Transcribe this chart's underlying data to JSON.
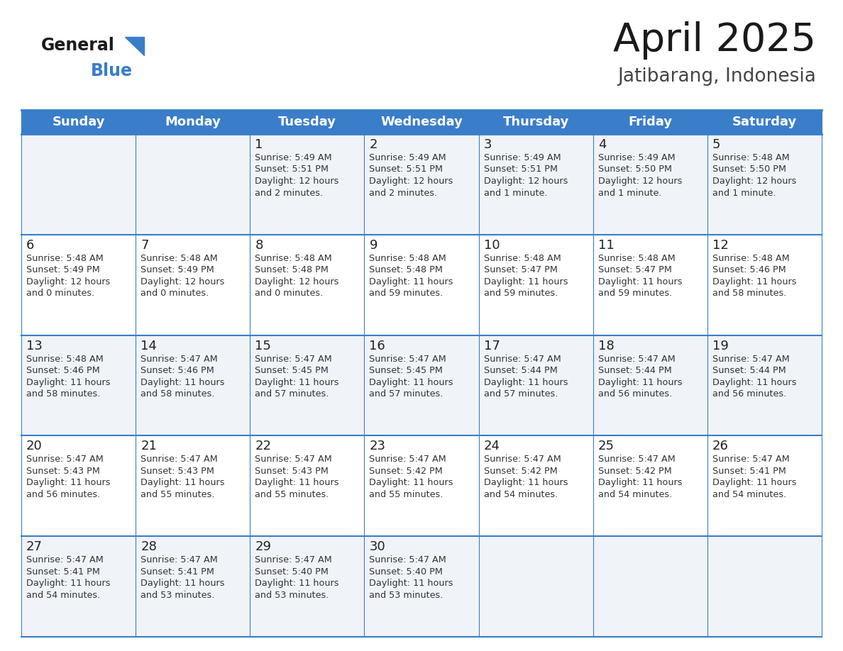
{
  "title": "April 2025",
  "subtitle": "Jatibarang, Indonesia",
  "header_bg_color": "#3A7DC9",
  "header_text_color": "#FFFFFF",
  "row_bg_colors": [
    "#F0F4F8",
    "#FFFFFF",
    "#F0F4F8",
    "#FFFFFF",
    "#F0F4F8"
  ],
  "grid_line_color": "#3A7DC9",
  "separator_line_color": "#3A7DC9",
  "day_number_color": "#222222",
  "cell_text_color": "#333333",
  "weekdays": [
    "Sunday",
    "Monday",
    "Tuesday",
    "Wednesday",
    "Thursday",
    "Friday",
    "Saturday"
  ],
  "calendar_data": [
    [
      {
        "day": null,
        "sunrise": null,
        "sunset": null,
        "daylight": null
      },
      {
        "day": null,
        "sunrise": null,
        "sunset": null,
        "daylight": null
      },
      {
        "day": 1,
        "sunrise": "5:49 AM",
        "sunset": "5:51 PM",
        "daylight": "12 hours\nand 2 minutes."
      },
      {
        "day": 2,
        "sunrise": "5:49 AM",
        "sunset": "5:51 PM",
        "daylight": "12 hours\nand 2 minutes."
      },
      {
        "day": 3,
        "sunrise": "5:49 AM",
        "sunset": "5:51 PM",
        "daylight": "12 hours\nand 1 minute."
      },
      {
        "day": 4,
        "sunrise": "5:49 AM",
        "sunset": "5:50 PM",
        "daylight": "12 hours\nand 1 minute."
      },
      {
        "day": 5,
        "sunrise": "5:48 AM",
        "sunset": "5:50 PM",
        "daylight": "12 hours\nand 1 minute."
      }
    ],
    [
      {
        "day": 6,
        "sunrise": "5:48 AM",
        "sunset": "5:49 PM",
        "daylight": "12 hours\nand 0 minutes."
      },
      {
        "day": 7,
        "sunrise": "5:48 AM",
        "sunset": "5:49 PM",
        "daylight": "12 hours\nand 0 minutes."
      },
      {
        "day": 8,
        "sunrise": "5:48 AM",
        "sunset": "5:48 PM",
        "daylight": "12 hours\nand 0 minutes."
      },
      {
        "day": 9,
        "sunrise": "5:48 AM",
        "sunset": "5:48 PM",
        "daylight": "11 hours\nand 59 minutes."
      },
      {
        "day": 10,
        "sunrise": "5:48 AM",
        "sunset": "5:47 PM",
        "daylight": "11 hours\nand 59 minutes."
      },
      {
        "day": 11,
        "sunrise": "5:48 AM",
        "sunset": "5:47 PM",
        "daylight": "11 hours\nand 59 minutes."
      },
      {
        "day": 12,
        "sunrise": "5:48 AM",
        "sunset": "5:46 PM",
        "daylight": "11 hours\nand 58 minutes."
      }
    ],
    [
      {
        "day": 13,
        "sunrise": "5:48 AM",
        "sunset": "5:46 PM",
        "daylight": "11 hours\nand 58 minutes."
      },
      {
        "day": 14,
        "sunrise": "5:47 AM",
        "sunset": "5:46 PM",
        "daylight": "11 hours\nand 58 minutes."
      },
      {
        "day": 15,
        "sunrise": "5:47 AM",
        "sunset": "5:45 PM",
        "daylight": "11 hours\nand 57 minutes."
      },
      {
        "day": 16,
        "sunrise": "5:47 AM",
        "sunset": "5:45 PM",
        "daylight": "11 hours\nand 57 minutes."
      },
      {
        "day": 17,
        "sunrise": "5:47 AM",
        "sunset": "5:44 PM",
        "daylight": "11 hours\nand 57 minutes."
      },
      {
        "day": 18,
        "sunrise": "5:47 AM",
        "sunset": "5:44 PM",
        "daylight": "11 hours\nand 56 minutes."
      },
      {
        "day": 19,
        "sunrise": "5:47 AM",
        "sunset": "5:44 PM",
        "daylight": "11 hours\nand 56 minutes."
      }
    ],
    [
      {
        "day": 20,
        "sunrise": "5:47 AM",
        "sunset": "5:43 PM",
        "daylight": "11 hours\nand 56 minutes."
      },
      {
        "day": 21,
        "sunrise": "5:47 AM",
        "sunset": "5:43 PM",
        "daylight": "11 hours\nand 55 minutes."
      },
      {
        "day": 22,
        "sunrise": "5:47 AM",
        "sunset": "5:43 PM",
        "daylight": "11 hours\nand 55 minutes."
      },
      {
        "day": 23,
        "sunrise": "5:47 AM",
        "sunset": "5:42 PM",
        "daylight": "11 hours\nand 55 minutes."
      },
      {
        "day": 24,
        "sunrise": "5:47 AM",
        "sunset": "5:42 PM",
        "daylight": "11 hours\nand 54 minutes."
      },
      {
        "day": 25,
        "sunrise": "5:47 AM",
        "sunset": "5:42 PM",
        "daylight": "11 hours\nand 54 minutes."
      },
      {
        "day": 26,
        "sunrise": "5:47 AM",
        "sunset": "5:41 PM",
        "daylight": "11 hours\nand 54 minutes."
      }
    ],
    [
      {
        "day": 27,
        "sunrise": "5:47 AM",
        "sunset": "5:41 PM",
        "daylight": "11 hours\nand 54 minutes."
      },
      {
        "day": 28,
        "sunrise": "5:47 AM",
        "sunset": "5:41 PM",
        "daylight": "11 hours\nand 53 minutes."
      },
      {
        "day": 29,
        "sunrise": "5:47 AM",
        "sunset": "5:40 PM",
        "daylight": "11 hours\nand 53 minutes."
      },
      {
        "day": 30,
        "sunrise": "5:47 AM",
        "sunset": "5:40 PM",
        "daylight": "11 hours\nand 53 minutes."
      },
      {
        "day": null,
        "sunrise": null,
        "sunset": null,
        "daylight": null
      },
      {
        "day": null,
        "sunrise": null,
        "sunset": null,
        "daylight": null
      },
      {
        "day": null,
        "sunrise": null,
        "sunset": null,
        "daylight": null
      }
    ]
  ]
}
